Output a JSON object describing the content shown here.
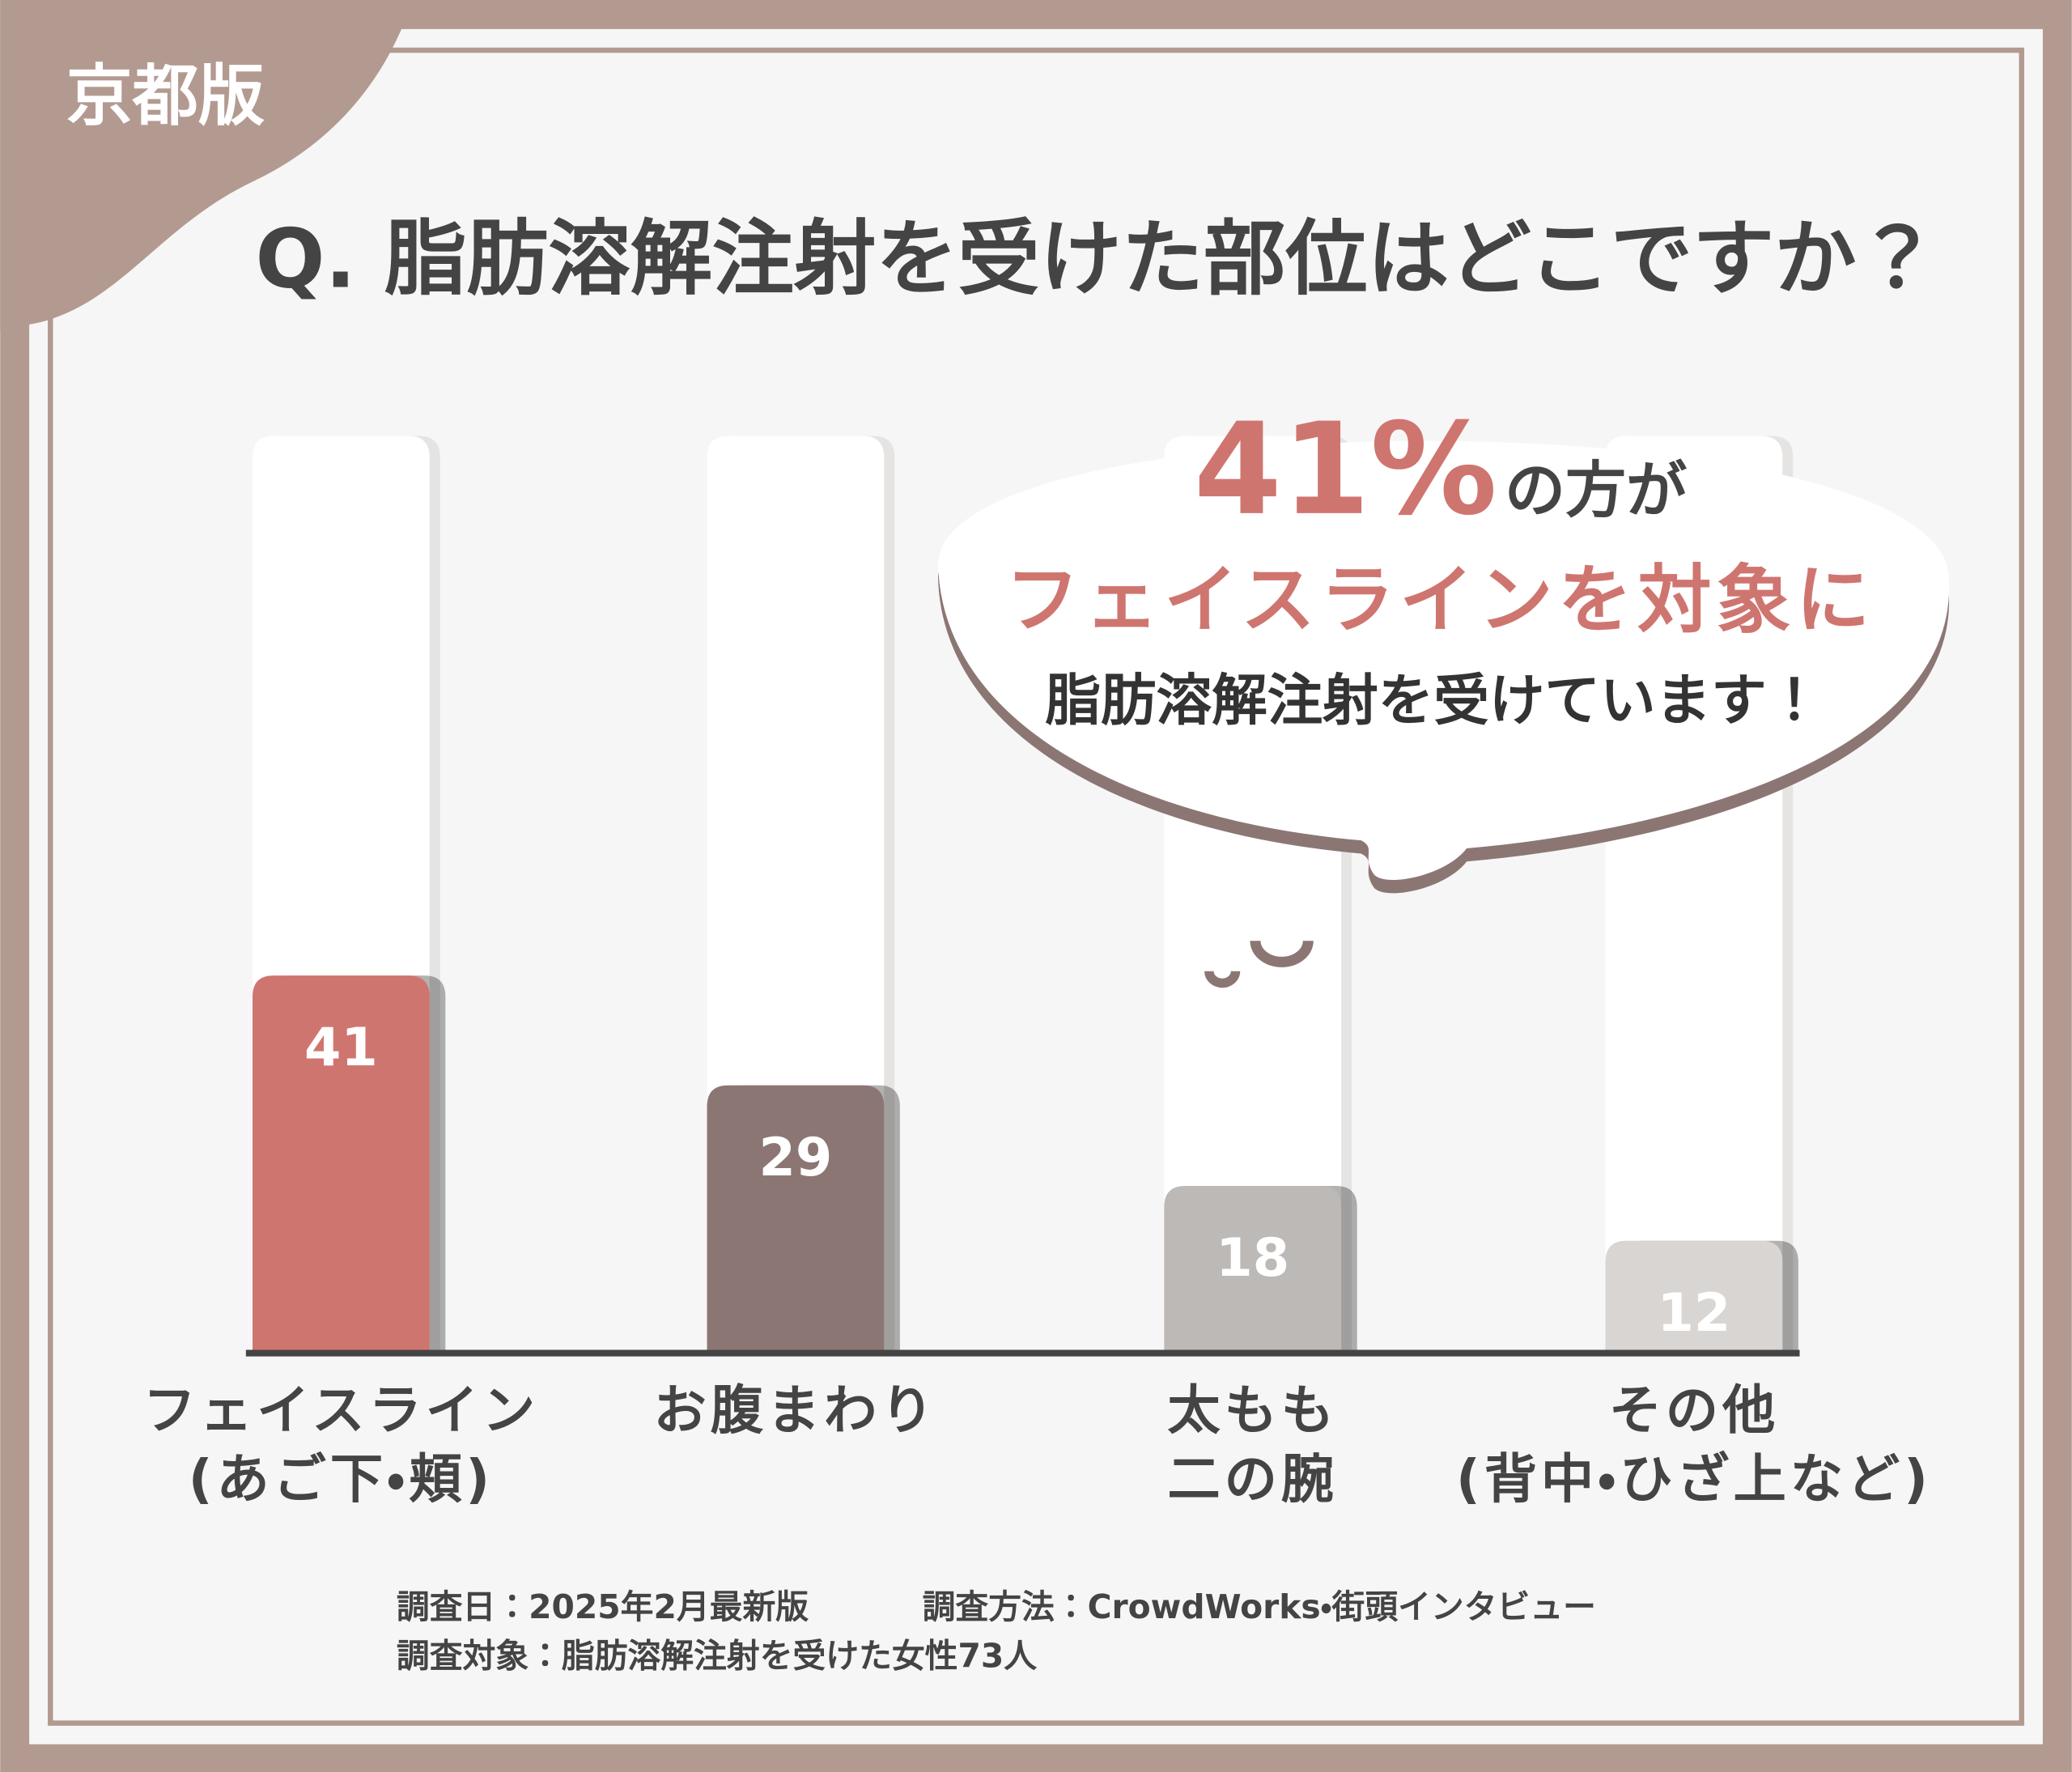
{
  "badge": "京都版",
  "chart_data": {
    "type": "bar",
    "title": "Q. 脂肪溶解注射を受けた部位はどこですか？",
    "categories": [
      "フェイスライン\n(あご下・頬)",
      "お腹まわり",
      "太もも\n二の腕",
      "その他\n(背中・ひざ上など)"
    ],
    "values": [
      41,
      29,
      18,
      12
    ],
    "colors": [
      "#cf7570",
      "#8c7673",
      "#bdb9b7",
      "#d8d5d3"
    ],
    "ylim": [
      0,
      100
    ],
    "annotation": {
      "highlight": "41%",
      "text1": "の方が",
      "text2": "フェイスラインを対象に",
      "text3": "脂肪溶解注射を受けています！"
    },
    "notes": [
      "調査日：2025年2月最新版",
      "調査方法：CrowdWorks・街頭インタビュー",
      "調査対象：脂肪溶解注射を受けた女性73人"
    ]
  }
}
